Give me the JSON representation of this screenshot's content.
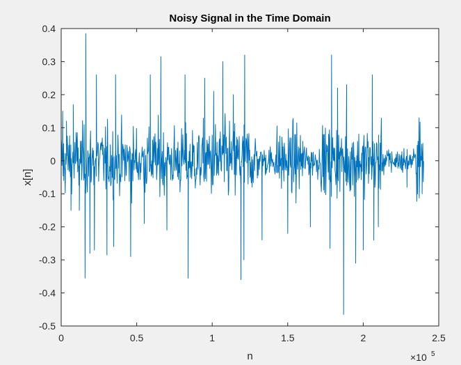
{
  "chart_data": {
    "type": "line",
    "title": "Noisy Signal in the Time Domain",
    "xlabel": "n",
    "ylabel": "x[n]",
    "xlim": [
      0,
      250000
    ],
    "ylim": [
      -0.5,
      0.4
    ],
    "x_ticks": [
      0,
      0.5,
      1,
      1.5,
      2,
      2.5
    ],
    "x_tick_labels": [
      "0",
      "0.5",
      "1",
      "1.5",
      "2",
      "2.5"
    ],
    "x_exponent": {
      "base": "×10",
      "power": "5"
    },
    "y_ticks": [
      0.4,
      0.3,
      0.2,
      0.1,
      0,
      -0.1,
      -0.2,
      -0.3,
      -0.4,
      -0.5
    ],
    "y_tick_labels": [
      "0.4",
      "0.3",
      "0.2",
      "0.1",
      "0",
      "-0.1",
      "-0.2",
      "-0.3",
      "-0.4",
      "-0.5"
    ],
    "grid": false,
    "colors": {
      "line": "#0072bd",
      "background": "#f0f0f0",
      "axes_bg": "#ffffff"
    },
    "series": [
      {
        "x_start": 0,
        "x_end": 240000,
        "peaks": [
          {
            "x": 1000,
            "y": 0.15
          },
          {
            "x": 1700,
            "y": -0.06
          },
          {
            "x": 3500,
            "y": 0.12
          },
          {
            "x": 6500,
            "y": -0.15
          },
          {
            "x": 8000,
            "y": 0.17
          },
          {
            "x": 12000,
            "y": -0.15
          },
          {
            "x": 15800,
            "y": -0.355
          },
          {
            "x": 16300,
            "y": 0.385
          },
          {
            "x": 19000,
            "y": -0.28
          },
          {
            "x": 22000,
            "y": -0.27
          },
          {
            "x": 23300,
            "y": 0.26
          },
          {
            "x": 30300,
            "y": -0.285
          },
          {
            "x": 34800,
            "y": -0.26
          },
          {
            "x": 36000,
            "y": 0.26
          },
          {
            "x": 46000,
            "y": -0.29
          },
          {
            "x": 55000,
            "y": -0.19
          },
          {
            "x": 59000,
            "y": 0.26
          },
          {
            "x": 66000,
            "y": 0.315
          },
          {
            "x": 70000,
            "y": -0.21
          },
          {
            "x": 82000,
            "y": 0.26
          },
          {
            "x": 84000,
            "y": -0.355
          },
          {
            "x": 95000,
            "y": 0.25
          },
          {
            "x": 101000,
            "y": 0.21
          },
          {
            "x": 107000,
            "y": 0.3
          },
          {
            "x": 114000,
            "y": 0.2
          },
          {
            "x": 119000,
            "y": -0.36
          },
          {
            "x": 121500,
            "y": 0.32
          },
          {
            "x": 121000,
            "y": -0.3
          },
          {
            "x": 133000,
            "y": -0.24
          },
          {
            "x": 150000,
            "y": -0.22
          },
          {
            "x": 165000,
            "y": -0.2
          },
          {
            "x": 178000,
            "y": -0.265
          },
          {
            "x": 179000,
            "y": 0.32
          },
          {
            "x": 183000,
            "y": 0.22
          },
          {
            "x": 187000,
            "y": -0.465
          },
          {
            "x": 189000,
            "y": 0.23
          },
          {
            "x": 195000,
            "y": -0.31
          },
          {
            "x": 200000,
            "y": -0.27
          },
          {
            "x": 206000,
            "y": 0.26
          },
          {
            "x": 207000,
            "y": -0.24
          },
          {
            "x": 210000,
            "y": -0.2
          },
          {
            "x": 229000,
            "y": -0.08
          },
          {
            "x": 237000,
            "y": 0.13
          },
          {
            "x": 239000,
            "y": -0.1
          }
        ]
      }
    ]
  }
}
